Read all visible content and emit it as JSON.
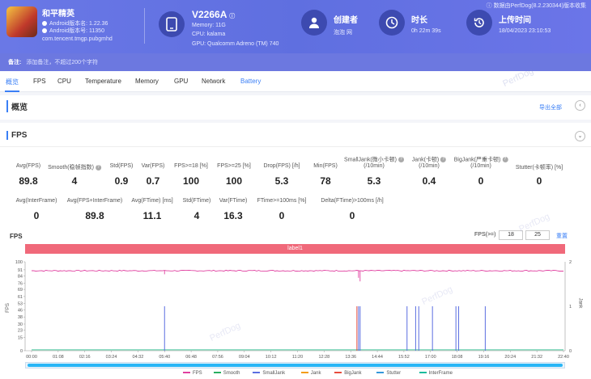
{
  "app": {
    "name": "和平精英",
    "android_version": "Android版本名: 1.22.36",
    "android_code": "Android版本号: 11350",
    "package": "com.tencent.tmgp.pubgmhd"
  },
  "device": {
    "model": "V2266A",
    "memory": "Memory: 11G",
    "cpu": "CPU: kalama",
    "gpu": "GPU: Qualcomm Adreno (TM) 740"
  },
  "meta": {
    "creator_label": "创建者",
    "creator_value": "泡泡 网",
    "duration_label": "时长",
    "duration_value": "0h 22m 39s",
    "upload_label": "上传时间",
    "upload_value": "18/04/2023 23:10:53",
    "export_note": "数据由PerfDog(8.2.230344)版本收集"
  },
  "notes": {
    "label": "备注:",
    "placeholder": "添加备注，不超过200个字符"
  },
  "tabs": [
    "概览",
    "FPS",
    "CPU",
    "Temperature",
    "Memory",
    "GPU",
    "Network",
    "Battery"
  ],
  "overview": {
    "title": "概览",
    "export": "导出全部"
  },
  "fps_section": {
    "title": "FPS"
  },
  "stats_row1": [
    {
      "label": "Avg(FPS)",
      "value": "89.8"
    },
    {
      "label": "Smooth(稳帧指数)",
      "value": "4"
    },
    {
      "label": "Std(FPS)",
      "value": "0.9"
    },
    {
      "label": "Var(FPS)",
      "value": "0.7"
    },
    {
      "label": "FPS>=18 [%]",
      "value": "100"
    },
    {
      "label": "FPS>=25 [%]",
      "value": "100"
    },
    {
      "label": "Drop(FPS) [/h]",
      "value": "5.3"
    },
    {
      "label": "Min(FPS)",
      "value": "78"
    },
    {
      "label": "SmallJank(微小卡顿)",
      "label2": "(/10min)",
      "value": "5.3"
    },
    {
      "label": "Jank(卡顿)",
      "label2": "(/10min)",
      "value": "0.4"
    },
    {
      "label": "BigJank(严重卡顿)",
      "label2": "(/10min)",
      "value": "0"
    },
    {
      "label": "Stutter(卡顿率) [%]",
      "value": "0"
    }
  ],
  "stats_row2": [
    {
      "label": "Avg(InterFrame)",
      "value": "0"
    },
    {
      "label": "Avg(FPS+InterFrame)",
      "value": "89.8"
    },
    {
      "label": "Avg(FTime) [ms]",
      "value": "11.1"
    },
    {
      "label": "Std(FTime)",
      "value": "4"
    },
    {
      "label": "Var(FTime)",
      "value": "16.3"
    },
    {
      "label": "FTime>=100ms [%]",
      "value": "0"
    },
    {
      "label": "Delta(FTime)>100ms [/h]",
      "value": "0"
    }
  ],
  "chart_controls": {
    "title": "FPS",
    "fps_ge_label": "FPS(>=)",
    "threshold1": "18",
    "threshold2": "25",
    "reset": "重置",
    "label_bar": "label1"
  },
  "chart_data": {
    "type": "line",
    "y_left_label": "FPS",
    "y_right_label": "Jank",
    "ylim": [
      0,
      100
    ],
    "y2lim": [
      0,
      2
    ],
    "y_ticks": [
      0,
      15,
      23,
      30,
      38,
      46,
      53,
      61,
      69,
      76,
      84,
      91,
      100
    ],
    "y2_ticks": [
      0,
      1,
      2
    ],
    "x_ticks": [
      "00:00",
      "01:08",
      "02:16",
      "03:24",
      "04:32",
      "05:40",
      "06:48",
      "07:56",
      "09:04",
      "10:12",
      "11:20",
      "12:28",
      "13:36",
      "14:44",
      "15:52",
      "17:00",
      "18:08",
      "19:16",
      "20:24",
      "21:32",
      "22:40"
    ],
    "fps_typical": 90,
    "fps_dips": [
      {
        "time": "13:56",
        "fps": 82
      },
      {
        "time": "14:00",
        "fps": 78
      },
      {
        "time": "05:40",
        "fps": 86
      }
    ],
    "smalljank_events": [
      "05:40",
      "13:56",
      "14:00",
      "16:00",
      "16:22",
      "16:30",
      "17:05",
      "18:05",
      "18:12",
      "19:20"
    ],
    "jank_events": [
      "13:56"
    ],
    "series": [
      {
        "name": "FPS",
        "color": "#e040a0"
      },
      {
        "name": "Smooth",
        "color": "#27ae60"
      },
      {
        "name": "SmallJank",
        "color": "#5b6ee1"
      },
      {
        "name": "Jank",
        "color": "#f39c12"
      },
      {
        "name": "BigJank",
        "color": "#e74c3c"
      },
      {
        "name": "Stutter",
        "color": "#3498db"
      },
      {
        "name": "InterFrame",
        "color": "#1abc9c"
      }
    ]
  },
  "watermark": "PerfDog"
}
